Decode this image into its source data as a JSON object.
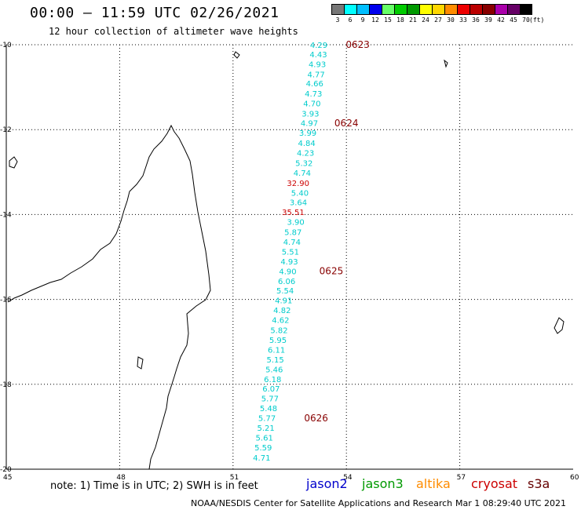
{
  "header": {
    "title": "00:00 – 11:59 UTC 02/26/2021",
    "subtitle": "12 hour collection of altimeter wave heights"
  },
  "legend": {
    "unit": "(ft)",
    "items": [
      {
        "label": "3",
        "color": "#777777"
      },
      {
        "label": "6",
        "color": "#00ffff"
      },
      {
        "label": "9",
        "color": "#00bfff"
      },
      {
        "label": "12",
        "color": "#0000ee"
      },
      {
        "label": "15",
        "color": "#66ff66"
      },
      {
        "label": "18",
        "color": "#00cc00"
      },
      {
        "label": "21",
        "color": "#009900"
      },
      {
        "label": "24",
        "color": "#ffff00"
      },
      {
        "label": "27",
        "color": "#ffd700"
      },
      {
        "label": "30",
        "color": "#ff8c00"
      },
      {
        "label": "33",
        "color": "#ee0000"
      },
      {
        "label": "36",
        "color": "#bb0000"
      },
      {
        "label": "39",
        "color": "#880000"
      },
      {
        "label": "42",
        "color": "#aa00aa"
      },
      {
        "label": "45",
        "color": "#660066"
      },
      {
        "label": "70",
        "color": "#000000"
      }
    ]
  },
  "axes": {
    "lat_labels": [
      "-10",
      "-12",
      "-14",
      "-16",
      "-18",
      "-20"
    ],
    "lon_labels": [
      "45",
      "48",
      "51",
      "54",
      "57",
      "60"
    ]
  },
  "track": {
    "color_normal": "#00cccc",
    "color_high": "#cc0000",
    "values": [
      {
        "v": "4.29",
        "lon": 53.5,
        "lat": -10.0
      },
      {
        "v": "4.43",
        "lon": 53.49,
        "lat": -10.22
      },
      {
        "v": "4.93",
        "lon": 53.46,
        "lat": -10.45
      },
      {
        "v": "4.77",
        "lon": 53.43,
        "lat": -10.69
      },
      {
        "v": "4.66",
        "lon": 53.39,
        "lat": -10.91
      },
      {
        "v": "4.73",
        "lon": 53.36,
        "lat": -11.15
      },
      {
        "v": "4.70",
        "lon": 53.32,
        "lat": -11.38
      },
      {
        "v": "3.93",
        "lon": 53.28,
        "lat": -11.62
      },
      {
        "v": "4.97",
        "lon": 53.25,
        "lat": -11.84
      },
      {
        "v": "3.99",
        "lon": 53.21,
        "lat": -12.07
      },
      {
        "v": "4.84",
        "lon": 53.18,
        "lat": -12.31
      },
      {
        "v": "4.23",
        "lon": 53.15,
        "lat": -12.54
      },
      {
        "v": "5.32",
        "lon": 53.11,
        "lat": -12.78
      },
      {
        "v": "4.74",
        "lon": 53.06,
        "lat": -13.01
      },
      {
        "v": "32.90",
        "lon": 53.02,
        "lat": -13.25,
        "high": true
      },
      {
        "v": "5.40",
        "lon": 53.0,
        "lat": -13.48
      },
      {
        "v": "3.64",
        "lon": 52.96,
        "lat": -13.71
      },
      {
        "v": "35.51",
        "lon": 52.89,
        "lat": -13.94,
        "high": true
      },
      {
        "v": "3.90",
        "lon": 52.89,
        "lat": -14.17
      },
      {
        "v": "5.87",
        "lon": 52.82,
        "lat": -14.41
      },
      {
        "v": "4.74",
        "lon": 52.79,
        "lat": -14.64
      },
      {
        "v": "5.51",
        "lon": 52.75,
        "lat": -14.87
      },
      {
        "v": "4.93",
        "lon": 52.72,
        "lat": -15.1
      },
      {
        "v": "4.90",
        "lon": 52.68,
        "lat": -15.33
      },
      {
        "v": "6.06",
        "lon": 52.65,
        "lat": -15.56
      },
      {
        "v": "5.54",
        "lon": 52.61,
        "lat": -15.79
      },
      {
        "v": "4.91",
        "lon": 52.57,
        "lat": -16.02
      },
      {
        "v": "4.82",
        "lon": 52.53,
        "lat": -16.25
      },
      {
        "v": "4.62",
        "lon": 52.49,
        "lat": -16.48
      },
      {
        "v": "5.82",
        "lon": 52.45,
        "lat": -16.72
      },
      {
        "v": "5.95",
        "lon": 52.42,
        "lat": -16.95
      },
      {
        "v": "6.11",
        "lon": 52.38,
        "lat": -17.18
      },
      {
        "v": "5.15",
        "lon": 52.35,
        "lat": -17.41
      },
      {
        "v": "5.46",
        "lon": 52.32,
        "lat": -17.64
      },
      {
        "v": "6.18",
        "lon": 52.28,
        "lat": -17.87
      },
      {
        "v": "6.07",
        "lon": 52.24,
        "lat": -18.1
      },
      {
        "v": "5.77",
        "lon": 52.21,
        "lat": -18.33
      },
      {
        "v": "5.48",
        "lon": 52.17,
        "lat": -18.56
      },
      {
        "v": "5.77",
        "lon": 52.13,
        "lat": -18.79
      },
      {
        "v": "5.21",
        "lon": 52.1,
        "lat": -19.02
      },
      {
        "v": "5.61",
        "lon": 52.06,
        "lat": -19.25
      },
      {
        "v": "5.59",
        "lon": 52.03,
        "lat": -19.48
      },
      {
        "v": "4.71",
        "lon": 51.99,
        "lat": -19.72
      }
    ],
    "times": [
      {
        "label": "0623",
        "lon": 54.3,
        "lat": -10.0
      },
      {
        "label": "0624",
        "lon": 54.0,
        "lat": -11.85
      },
      {
        "label": "0625",
        "lon": 53.6,
        "lat": -15.33
      },
      {
        "label": "0626",
        "lon": 53.2,
        "lat": -18.8
      }
    ]
  },
  "footer": {
    "note": "note: 1) Time is in UTC; 2) SWH is in feet",
    "satellites": [
      {
        "name": "jason2",
        "color": "#0000cc"
      },
      {
        "name": "jason3",
        "color": "#009900"
      },
      {
        "name": "altika",
        "color": "#ff8c00"
      },
      {
        "name": "cryosat",
        "color": "#cc0000"
      },
      {
        "name": "s3a",
        "color": "#660000"
      }
    ],
    "credit": "NOAA/NESDIS Center for Satellite Applications and Research",
    "timestamp": "Mar  1 08:29:40 UTC 2021"
  }
}
